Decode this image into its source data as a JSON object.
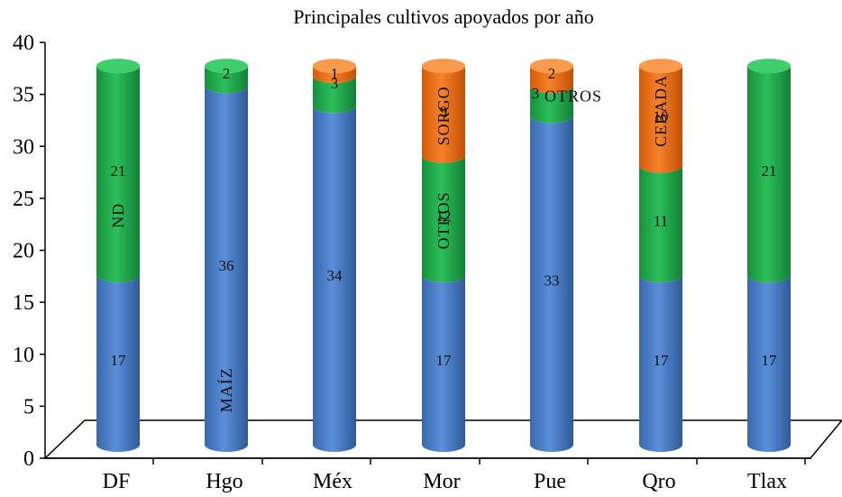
{
  "chart_data": {
    "type": "bar",
    "stacked": true,
    "style": "3d-cylinder",
    "title": "Principales cultivos apoyados por año",
    "xlabel": "",
    "ylabel": "",
    "ylim": [
      0,
      40
    ],
    "yticks": [
      "0",
      "5",
      "10",
      "15",
      "20",
      "25",
      "30",
      "35",
      "40"
    ],
    "categories": [
      "DF",
      "Hgo",
      "Méx",
      "Mor",
      "Pue",
      "Qro",
      "Tlax"
    ],
    "series": [
      {
        "color": "#4a7ec9",
        "values": [
          17,
          36,
          34,
          17,
          33,
          17,
          17
        ],
        "labels": [
          "17",
          "36",
          "34",
          "17",
          "33",
          "17",
          "17"
        ]
      },
      {
        "color": "#1faa4b",
        "values": [
          21,
          2,
          3,
          12,
          3,
          11,
          21
        ],
        "labels": [
          "21",
          "2",
          "3",
          "12",
          "3",
          "11",
          "21"
        ]
      },
      {
        "color": "#f06a10",
        "values": [
          0,
          0,
          1,
          9,
          2,
          10,
          0
        ],
        "labels": [
          "",
          "",
          "1",
          "9",
          "2",
          "10",
          ""
        ]
      }
    ],
    "annotations": [
      {
        "text": "ND",
        "category": "DF",
        "y": 23,
        "vertical": true
      },
      {
        "text": "MAÍZ",
        "category": "Hgo",
        "y": 5.5,
        "vertical": true
      },
      {
        "text": "OTROS",
        "category": "Mor",
        "y": 22.5,
        "vertical": true
      },
      {
        "text": "SORGO",
        "category": "Mor",
        "y": 33,
        "vertical": true
      },
      {
        "text": "OTROS",
        "category": "Pue",
        "y": 35,
        "vertical": false
      },
      {
        "text": "CEBADA",
        "category": "Qro",
        "y": 33.5,
        "vertical": true
      }
    ]
  }
}
